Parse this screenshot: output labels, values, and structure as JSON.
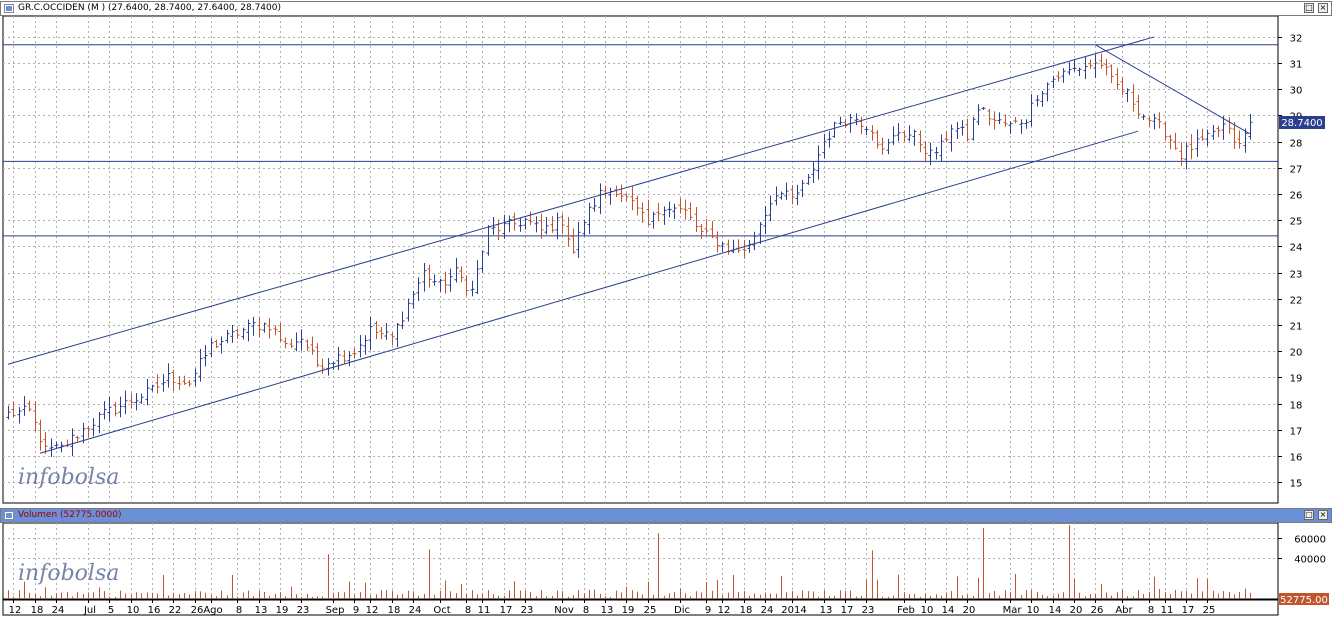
{
  "price_panel": {
    "title": "GR.C.OCCIDEN (M ) (27.6400, 28.7400, 27.6400, 28.7400)",
    "last_price_label": "28.7400",
    "watermark": "infobolsa"
  },
  "volume_panel": {
    "title": "Volumen (52775.0000)",
    "last_volume_label": "52775.00",
    "watermark": "infobolsa"
  },
  "colors": {
    "up": "#2b3f8f",
    "down": "#c0552e",
    "trendline": "#2b3f8f",
    "grid": "#b0b0b0",
    "volume": "#c0552e",
    "title_bar_price": "#ffffff",
    "title_bar_volume": "#6b8fd8"
  },
  "chart_data": [
    {
      "type": "ohlc",
      "ylim": [
        14.2,
        32.8
      ],
      "y_ticks": [
        15,
        16,
        17,
        18,
        19,
        20,
        21,
        22,
        23,
        24,
        25,
        26,
        27,
        28,
        29,
        30,
        31,
        32
      ],
      "grid": true,
      "horizontal_lines": [
        31.7,
        27.25,
        24.4
      ],
      "trendlines": [
        {
          "from": [
            0,
            19.5
          ],
          "to": [
            215,
            32
          ]
        },
        {
          "from": [
            6,
            16.1
          ],
          "to": [
            212,
            28.4
          ]
        },
        {
          "from": [
            204,
            31.7
          ],
          "to": [
            233,
            28.3
          ]
        }
      ],
      "close_anchors": [
        [
          0,
          17.6
        ],
        [
          4,
          17.7
        ],
        [
          7,
          16.2
        ],
        [
          10,
          16.3
        ],
        [
          14,
          17.0
        ],
        [
          18,
          17.6
        ],
        [
          22,
          18.0
        ],
        [
          27,
          18.5
        ],
        [
          30,
          19.0
        ],
        [
          34,
          18.8
        ],
        [
          38,
          20.2
        ],
        [
          42,
          20.6
        ],
        [
          46,
          21.0
        ],
        [
          49,
          21.0
        ],
        [
          52,
          20.2
        ],
        [
          55,
          20.5
        ],
        [
          58,
          19.5
        ],
        [
          61,
          19.7
        ],
        [
          65,
          20.0
        ],
        [
          68,
          20.8
        ],
        [
          72,
          20.5
        ],
        [
          75,
          21.8
        ],
        [
          78,
          23.0
        ],
        [
          81,
          22.5
        ],
        [
          84,
          23.0
        ],
        [
          87,
          22.3
        ],
        [
          90,
          24.6
        ],
        [
          94,
          24.8
        ],
        [
          97,
          25.0
        ],
        [
          100,
          24.6
        ],
        [
          104,
          25.0
        ],
        [
          106,
          23.8
        ],
        [
          108,
          25.0
        ],
        [
          111,
          26.0
        ],
        [
          114,
          26.2
        ],
        [
          117,
          25.6
        ],
        [
          120,
          24.8
        ],
        [
          123,
          25.6
        ],
        [
          127,
          25.3
        ],
        [
          130,
          24.5
        ],
        [
          133,
          24.2
        ],
        [
          136,
          23.8
        ],
        [
          139,
          24.0
        ],
        [
          141,
          24.9
        ],
        [
          144,
          26.1
        ],
        [
          147,
          25.8
        ],
        [
          150,
          26.5
        ],
        [
          153,
          28.0
        ],
        [
          156,
          28.8
        ],
        [
          159,
          28.9
        ],
        [
          162,
          28.5
        ],
        [
          164,
          27.6
        ],
        [
          167,
          28.4
        ],
        [
          170,
          28.2
        ],
        [
          173,
          27.5
        ],
        [
          175,
          27.8
        ],
        [
          177,
          28.6
        ],
        [
          180,
          28.2
        ],
        [
          182,
          29.3
        ],
        [
          185,
          28.8
        ],
        [
          188,
          28.6
        ],
        [
          191,
          28.9
        ],
        [
          193,
          29.8
        ],
        [
          196,
          30.4
        ],
        [
          199,
          30.7
        ],
        [
          202,
          30.9
        ],
        [
          205,
          31.0
        ],
        [
          207,
          30.3
        ],
        [
          210,
          29.8
        ],
        [
          213,
          29.0
        ],
        [
          217,
          28.4
        ],
        [
          220,
          27.5
        ],
        [
          222,
          27.8
        ],
        [
          225,
          28.1
        ],
        [
          228,
          28.6
        ],
        [
          231,
          27.8
        ],
        [
          233,
          28.74
        ]
      ],
      "volume": {
        "ylim": [
          0,
          75000
        ],
        "y_ticks": [
          40000,
          60000
        ],
        "spikes": [
          [
            60,
            44000
          ],
          [
            79,
            49000
          ],
          [
            122,
            65000
          ],
          [
            162,
            48000
          ],
          [
            183,
            70000
          ],
          [
            199,
            73000
          ]
        ],
        "last_value": 52775
      },
      "x_labels": [
        {
          "i": 1,
          "text": "12"
        },
        {
          "i": 5,
          "text": "18"
        },
        {
          "i": 9,
          "text": "24"
        },
        {
          "i": 15,
          "text": "Jul"
        },
        {
          "i": 19,
          "text": "5"
        },
        {
          "i": 23,
          "text": "10"
        },
        {
          "i": 27,
          "text": "16"
        },
        {
          "i": 31,
          "text": "22"
        },
        {
          "i": 35,
          "text": "26"
        },
        {
          "i": 38,
          "text": "Ago"
        },
        {
          "i": 43,
          "text": "8"
        },
        {
          "i": 47,
          "text": "13"
        },
        {
          "i": 51,
          "text": "19"
        },
        {
          "i": 55,
          "text": "23"
        },
        {
          "i": 61,
          "text": "Sep"
        },
        {
          "i": 65,
          "text": "9"
        },
        {
          "i": 68,
          "text": "12"
        },
        {
          "i": 72,
          "text": "18"
        },
        {
          "i": 76,
          "text": "24"
        },
        {
          "i": 81,
          "text": "Oct"
        },
        {
          "i": 86,
          "text": "8"
        },
        {
          "i": 89,
          "text": "11"
        },
        {
          "i": 93,
          "text": "17"
        },
        {
          "i": 97,
          "text": "23"
        },
        {
          "i": 104,
          "text": "Nov"
        },
        {
          "i": 108,
          "text": "8"
        },
        {
          "i": 112,
          "text": "13"
        },
        {
          "i": 116,
          "text": "19"
        },
        {
          "i": 120,
          "text": "25"
        },
        {
          "i": 126,
          "text": "Dic"
        },
        {
          "i": 131,
          "text": "9"
        },
        {
          "i": 134,
          "text": "12"
        },
        {
          "i": 138,
          "text": "18"
        },
        {
          "i": 142,
          "text": "24"
        },
        {
          "i": 147,
          "text": "2014"
        },
        {
          "i": 153,
          "text": "13"
        },
        {
          "i": 157,
          "text": "17"
        },
        {
          "i": 161,
          "text": "23"
        },
        {
          "i": 168,
          "text": "Feb"
        },
        {
          "i": 172,
          "text": "10"
        },
        {
          "i": 176,
          "text": "14"
        },
        {
          "i": 180,
          "text": "20"
        },
        {
          "i": 188,
          "text": "Mar"
        },
        {
          "i": 192,
          "text": "10"
        },
        {
          "i": 196,
          "text": "14"
        },
        {
          "i": 200,
          "text": "20"
        },
        {
          "i": 204,
          "text": "26"
        },
        {
          "i": 209,
          "text": "Abr"
        },
        {
          "i": 214,
          "text": "8"
        },
        {
          "i": 217,
          "text": "11"
        },
        {
          "i": 221,
          "text": "17"
        },
        {
          "i": 225,
          "text": "25"
        }
      ]
    }
  ]
}
